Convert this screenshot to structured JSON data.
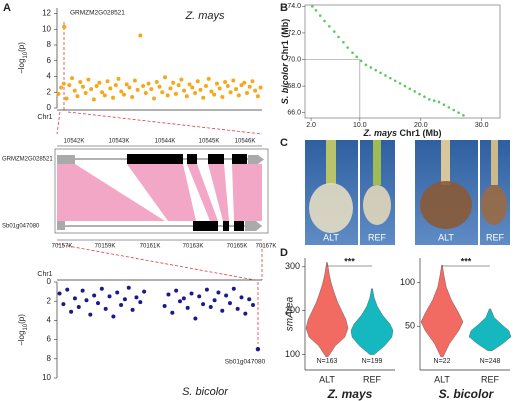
{
  "panel_labels": [
    "A",
    "B",
    "C",
    "D"
  ],
  "gene_panel": {
    "top_ticks": [
      "10542K",
      "10543K",
      "10544K",
      "10545K",
      "10546K"
    ],
    "bottom_ticks": [
      "70157K",
      "70159K",
      "70161K",
      "70163K",
      "70165K",
      "70167K"
    ],
    "top_gene": "GRMZM2G028521",
    "bottom_gene": "Sb01g047080"
  },
  "photos": {
    "labels": [
      "ALT",
      "REF",
      "ALT",
      "REF"
    ]
  },
  "chart_data": [
    {
      "type": "manhattan",
      "title": "Z. mays",
      "x_label": "Chr1",
      "y_label": [
        "−log",
        "10",
        "(p)"
      ],
      "color": "#f5a81c",
      "xlim": [
        0,
        300
      ],
      "ylim": [
        0,
        12.7
      ],
      "yticks": [
        0,
        2,
        4,
        6,
        8,
        10,
        12
      ],
      "inverted": false,
      "x": [
        2,
        6,
        10,
        14,
        18,
        22,
        26,
        30,
        34,
        38,
        42,
        46,
        50,
        54,
        58,
        62,
        66,
        70,
        74,
        78,
        82,
        86,
        90,
        94,
        98,
        102,
        106,
        110,
        114,
        118,
        122,
        126,
        130,
        134,
        138,
        142,
        146,
        150,
        154,
        158,
        162,
        166,
        170,
        174,
        178,
        182,
        186,
        190,
        194,
        198,
        202,
        206,
        210,
        214,
        218,
        222,
        226,
        230,
        234,
        238,
        242,
        246,
        250,
        254,
        258,
        262,
        266,
        270,
        274,
        278,
        282,
        286,
        290,
        294,
        298
      ],
      "values": [
        1.8,
        2.6,
        3.1,
        1.2,
        2.9,
        3.8,
        2.2,
        1.5,
        3.3,
        2.7,
        1.9,
        3.6,
        2.4,
        1.1,
        2.8,
        3.2,
        2.0,
        1.6,
        3.4,
        2.5,
        1.3,
        2.9,
        3.7,
        2.1,
        1.7,
        3.0,
        2.6,
        1.4,
        3.5,
        2.3,
        9.2,
        2.8,
        1.9,
        3.1,
        2.4,
        1.2,
        3.3,
        2.7,
        2.0,
        3.9,
        1.6,
        2.5,
        3.2,
        1.8,
        2.9,
        3.6,
        2.2,
        1.5,
        3.0,
        2.6,
        1.9,
        3.4,
        2.3,
        1.3,
        2.8,
        3.7,
        2.1,
        1.7,
        3.1,
        2.5,
        1.4,
        3.3,
        2.8,
        2.0,
        3.5,
        2.4,
        1.6,
        2.9,
        3.2,
        1.9,
        2.7,
        3.4,
        2.2,
        1.5,
        2.6
      ],
      "highlight": {
        "label": "GRMZM2G028521",
        "x": 10.5,
        "value": 10.3
      }
    },
    {
      "type": "manhattan",
      "title": "S. bicolor",
      "x_label": "Chr1",
      "y_label": [
        "−log",
        "10",
        "(p)"
      ],
      "color": "#1a1a8c",
      "xlim": [
        0,
        80
      ],
      "ylim": [
        0,
        10
      ],
      "yticks": [
        0,
        2,
        4,
        6,
        8,
        10
      ],
      "inverted": true,
      "x": [
        1,
        2.5,
        4,
        5.5,
        7,
        8.5,
        10,
        11.5,
        13,
        14.5,
        16,
        17.5,
        19,
        20.5,
        22,
        23.5,
        25,
        26.5,
        28,
        29.5,
        31,
        32.5,
        34,
        42,
        43.5,
        45,
        46.5,
        48,
        49.5,
        51,
        52.5,
        54,
        55.5,
        57,
        58.5,
        60,
        61.5,
        63,
        64.5,
        66,
        67.5,
        69,
        70.5,
        72,
        73.5,
        75,
        76.5
      ],
      "values": [
        1.2,
        2.3,
        0.8,
        3.1,
        1.7,
        2.6,
        0.9,
        1.9,
        3.4,
        1.4,
        2.2,
        0.7,
        2.8,
        1.5,
        3.6,
        1.1,
        2.4,
        1.8,
        0.6,
        2.9,
        1.6,
        2.1,
        1.0,
        2.5,
        1.3,
        3.2,
        0.9,
        2.0,
        1.7,
        2.7,
        1.2,
        3.8,
        1.5,
        2.3,
        0.8,
        2.6,
        1.9,
        1.1,
        3.0,
        1.4,
        2.2,
        0.7,
        2.8,
        1.6,
        3.3,
        1.8,
        2.4
      ],
      "highlight": {
        "label": "Sb01g047080",
        "x": 78.4,
        "value": 7.0
      }
    },
    {
      "type": "dotplot",
      "x_label": [
        "Z. mays",
        " Chr1 (Mb)"
      ],
      "y_label": [
        "S. bicolor",
        " Chr1 (Mb)"
      ],
      "color": "#5cc95c",
      "xlim": [
        1,
        33
      ],
      "ylim": [
        65.6,
        74.1
      ],
      "xticks": [
        {
          "value": 2,
          "label": "2.0"
        },
        {
          "value": 10,
          "label": "10.0"
        },
        {
          "value": 20,
          "label": "20.0"
        },
        {
          "value": 30,
          "label": "30.0"
        }
      ],
      "yticks": [
        {
          "value": 66,
          "label": "66.0"
        },
        {
          "value": 68,
          "label": "68.0"
        },
        {
          "value": 70,
          "label": "70.0"
        },
        {
          "value": 72,
          "label": "72.0"
        },
        {
          "value": 74,
          "label": "74.0"
        }
      ],
      "x": [
        2.2,
        2.8,
        3.5,
        4.2,
        5.0,
        5.8,
        6.5,
        7.3,
        8.0,
        8.8,
        9.5,
        10.2,
        11.0,
        11.8,
        12.6,
        13.4,
        14.2,
        15.0,
        15.8,
        16.6,
        17.4,
        18.2,
        19.0,
        19.8,
        20.6,
        21.4,
        22.2,
        23.0,
        23.8,
        24.6,
        25.4,
        26.2,
        27.0
      ],
      "values": [
        74.0,
        73.7,
        73.3,
        72.9,
        72.5,
        72.1,
        71.7,
        71.3,
        70.9,
        70.5,
        70.2,
        69.9,
        69.6,
        69.4,
        69.2,
        69.0,
        68.8,
        68.6,
        68.4,
        68.2,
        68.0,
        67.8,
        67.6,
        67.4,
        67.2,
        67.0,
        66.9,
        66.8,
        66.6,
        66.4,
        66.2,
        66.0,
        65.8
      ],
      "crosshair": {
        "x": 10,
        "y": 70
      }
    },
    {
      "type": "violin",
      "title": "Z. mays",
      "y_label": "smArea",
      "ylim": [
        65,
        320
      ],
      "yticks": [
        100,
        200,
        300
      ],
      "significance": "***",
      "categories": [
        "ALT",
        "REF"
      ],
      "series": [
        {
          "color": "#f26b62",
          "n_label": "N=163",
          "y": [
            95,
            120,
            140,
            160,
            180,
            200,
            220,
            240,
            260,
            280,
            300,
            310
          ],
          "width": [
            0.05,
            0.4,
            0.85,
            1.0,
            0.9,
            0.7,
            0.5,
            0.35,
            0.22,
            0.12,
            0.05,
            0.02
          ]
        },
        {
          "color": "#14b8be",
          "n_label": "N=199",
          "y": [
            100,
            120,
            140,
            155,
            170,
            190,
            210,
            230,
            250
          ],
          "width": [
            0.1,
            0.6,
            0.95,
            1.0,
            0.85,
            0.5,
            0.25,
            0.1,
            0.03
          ]
        }
      ]
    },
    {
      "type": "violin",
      "title": "S. bicolor",
      "ylim": [
        0,
        128
      ],
      "yticks": [
        50,
        100
      ],
      "significance": "***",
      "categories": [
        "ALT",
        "REF"
      ],
      "series": [
        {
          "color": "#f26b62",
          "n_label": "N=22",
          "y": [
            15,
            30,
            45,
            55,
            65,
            80,
            95,
            110,
            120
          ],
          "width": [
            0.05,
            0.35,
            0.8,
            1.0,
            0.8,
            0.45,
            0.2,
            0.08,
            0.02
          ]
        },
        {
          "color": "#14b8be",
          "n_label": "N=248",
          "y": [
            22,
            30,
            38,
            45,
            52,
            60,
            70
          ],
          "width": [
            0.1,
            0.6,
            1.0,
            0.9,
            0.55,
            0.2,
            0.03
          ]
        }
      ]
    }
  ]
}
